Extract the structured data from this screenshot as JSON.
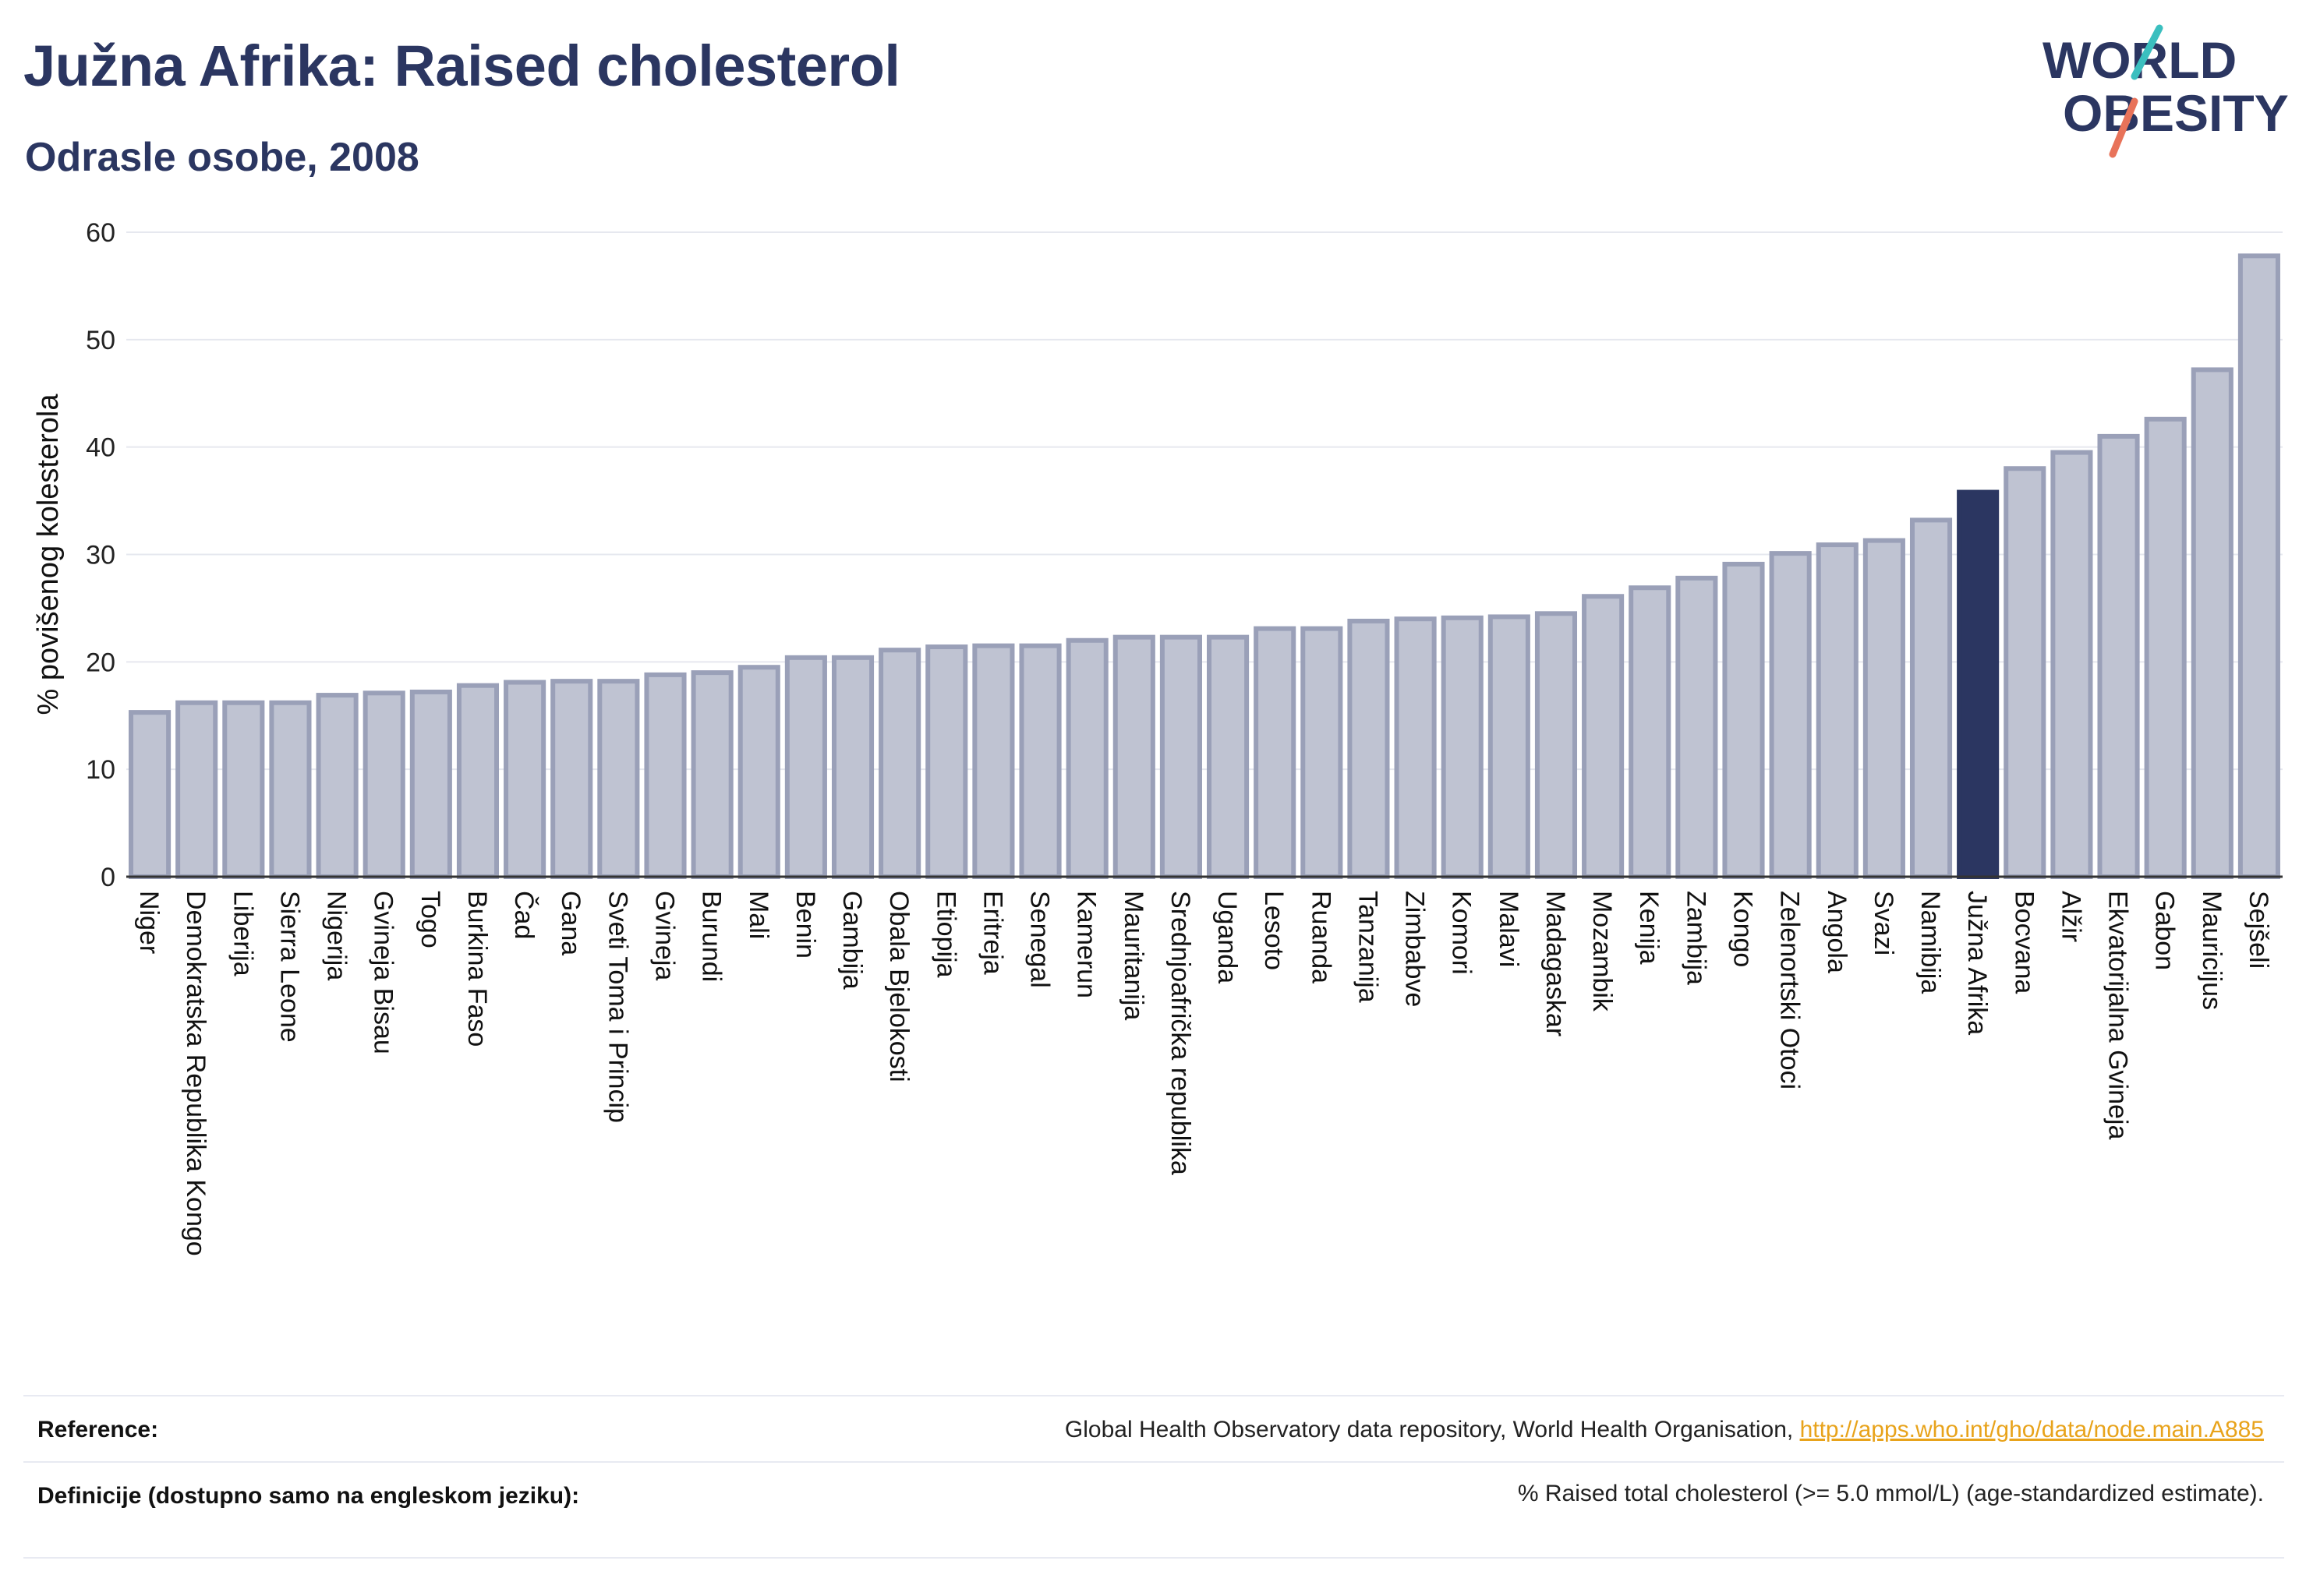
{
  "header": {
    "title": "Južna Afrika: Raised cholesterol",
    "subtitle": "Odrasle osobe, 2008"
  },
  "logo": {
    "line1": "WORLD",
    "line2": "OBESITY",
    "colors": {
      "navy": "#2b3661",
      "teal": "#3bbfbf",
      "coral": "#e8735a"
    }
  },
  "colors": {
    "bar_fill": "#bfc3d2",
    "bar_stroke": "#9aa0b8",
    "highlight": "#2b3661",
    "grid": "#e6e8ef"
  },
  "chart_data": {
    "type": "bar",
    "ylabel": "% povišenog kolesterola",
    "xlabel": "",
    "ylim": [
      0,
      60
    ],
    "yticks": [
      0,
      10,
      20,
      30,
      40,
      50,
      60
    ],
    "grid": true,
    "highlight": "Južna Afrika",
    "categories": [
      "Niger",
      "Demokratska Republika Kongo",
      "Liberija",
      "Sierra Leone",
      "Nigerija",
      "Gvineja Bisau",
      "Togo",
      "Burkina Faso",
      "Čad",
      "Gana",
      "Sveti Toma i Princip",
      "Gvineja",
      "Burundi",
      "Mali",
      "Benin",
      "Gambija",
      "Obala Bjelokosti",
      "Etiopija",
      "Eritreja",
      "Senegal",
      "Kamerun",
      "Mauritanija",
      "Srednjoafrička republika",
      "Uganda",
      "Lesoto",
      "Ruanda",
      "Tanzanija",
      "Zimbabve",
      "Komori",
      "Malavi",
      "Madagaskar",
      "Mozambik",
      "Kenija",
      "Zambija",
      "Kongo",
      "Zelenortski Otoci",
      "Angola",
      "Svazi",
      "Namibija",
      "Južna Afrika",
      "Bocvana",
      "Alžir",
      "Ekvatorijalna Gvineja",
      "Gabon",
      "Mauricijus",
      "Sejšeli"
    ],
    "values": [
      15.3,
      16.2,
      16.2,
      16.2,
      16.9,
      17.1,
      17.2,
      17.8,
      18.1,
      18.2,
      18.2,
      18.8,
      19.0,
      19.5,
      20.4,
      20.4,
      21.1,
      21.4,
      21.5,
      21.5,
      22.0,
      22.3,
      22.3,
      22.3,
      23.1,
      23.1,
      23.8,
      24.0,
      24.1,
      24.2,
      24.5,
      26.1,
      26.9,
      27.8,
      29.1,
      30.1,
      30.9,
      31.3,
      33.2,
      35.8,
      38.0,
      39.5,
      41.0,
      42.6,
      47.2,
      57.8
    ]
  },
  "footer": {
    "reference_label": "Reference:",
    "reference_text": "Global Health Observatory data repository, World Health Organisation, ",
    "reference_link": "http://apps.who.int/gho/data/node.main.A885",
    "definition_label": "Definicije (dostupno samo na engleskom jeziku):",
    "definition_text": "% Raised total cholesterol (>= 5.0 mmol/L) (age-standardized estimate)."
  }
}
